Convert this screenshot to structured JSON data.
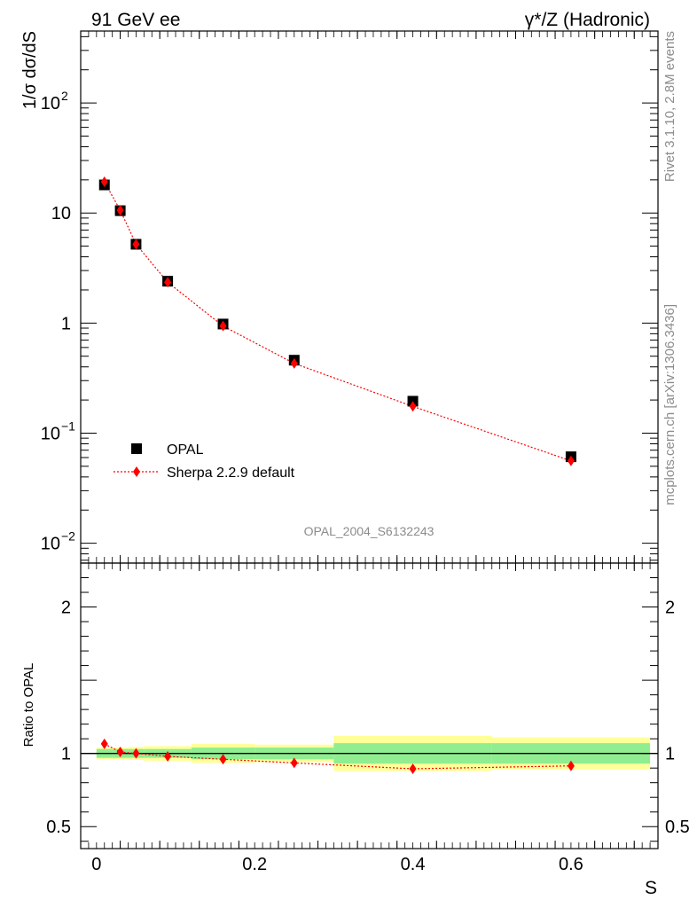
{
  "header": {
    "left_label": "91 GeV ee",
    "right_label": "γ*/Z (Hadronic)"
  },
  "side_text": {
    "rivet": "Rivet 3.1.10,  2.8M events",
    "mcplots": "mcplots.cern.ch [arXiv:1306.3436]"
  },
  "analysis_label": "OPAL_2004_S6132243",
  "colors": {
    "data": "#000000",
    "mc": "#ff0000",
    "band_inner": "#90ee90",
    "band_outer": "#ffff99"
  },
  "chart_data": [
    {
      "type": "scatter",
      "title": "",
      "xlabel": "S",
      "ylabel": "1/σ dσ/dS",
      "yscale": "log",
      "ylim": [
        0.0066,
        450
      ],
      "xlim": [
        -0.02,
        0.71
      ],
      "y_ticks": [
        {
          "value": 0.01,
          "label": "10",
          "exp": "−2"
        },
        {
          "value": 0.1,
          "label": "10",
          "exp": "−1"
        },
        {
          "value": 1,
          "label": "1",
          "exp": ""
        },
        {
          "value": 10,
          "label": "10",
          "exp": ""
        },
        {
          "value": 100,
          "label": "10",
          "exp": "2"
        }
      ],
      "legend": {
        "position": "bottom-left",
        "entries": [
          "OPAL",
          "Sherpa 2.2.9 default"
        ]
      },
      "series": [
        {
          "name": "OPAL",
          "marker": "square",
          "x": [
            0.01,
            0.03,
            0.05,
            0.09,
            0.16,
            0.25,
            0.4,
            0.6
          ],
          "values": [
            18.0,
            10.5,
            5.2,
            2.4,
            0.98,
            0.46,
            0.195,
            0.061
          ]
        },
        {
          "name": "Sherpa 2.2.9 default",
          "marker": "diamond",
          "line": "dotted",
          "x": [
            0.01,
            0.03,
            0.05,
            0.09,
            0.16,
            0.25,
            0.4,
            0.6
          ],
          "values": [
            19.2,
            10.6,
            5.2,
            2.35,
            0.94,
            0.43,
            0.175,
            0.056
          ]
        }
      ]
    },
    {
      "type": "line",
      "xlabel": "S",
      "ylabel": "Ratio to OPAL",
      "ylim": [
        0.35,
        2.3
      ],
      "xlim": [
        -0.02,
        0.71
      ],
      "y_ticks": [
        0.5,
        1,
        2
      ],
      "x_ticks": [
        0,
        0.2,
        0.4,
        0.6
      ],
      "x_tick_labels": [
        "0",
        "0.2",
        "0.4",
        "0.6"
      ],
      "series": [
        {
          "name": "Sherpa 2.2.9 default / OPAL",
          "x": [
            0.01,
            0.03,
            0.05,
            0.09,
            0.16,
            0.25,
            0.4,
            0.6
          ],
          "values": [
            1.065,
            1.01,
            1.0,
            0.98,
            0.96,
            0.935,
            0.895,
            0.915
          ]
        }
      ],
      "uncertainty_bands": [
        {
          "x0": 0.0,
          "x1": 0.02,
          "inner": 0.03,
          "outer": 0.04
        },
        {
          "x0": 0.02,
          "x1": 0.04,
          "inner": 0.03,
          "outer": 0.04
        },
        {
          "x0": 0.04,
          "x1": 0.06,
          "inner": 0.03,
          "outer": 0.045
        },
        {
          "x0": 0.06,
          "x1": 0.12,
          "inner": 0.03,
          "outer": 0.05
        },
        {
          "x0": 0.12,
          "x1": 0.2,
          "inner": 0.04,
          "outer": 0.065
        },
        {
          "x0": 0.2,
          "x1": 0.3,
          "inner": 0.04,
          "outer": 0.06
        },
        {
          "x0": 0.3,
          "x1": 0.5,
          "inner": 0.07,
          "outer": 0.12
        },
        {
          "x0": 0.5,
          "x1": 0.7,
          "inner": 0.07,
          "outer": 0.11
        }
      ]
    }
  ]
}
